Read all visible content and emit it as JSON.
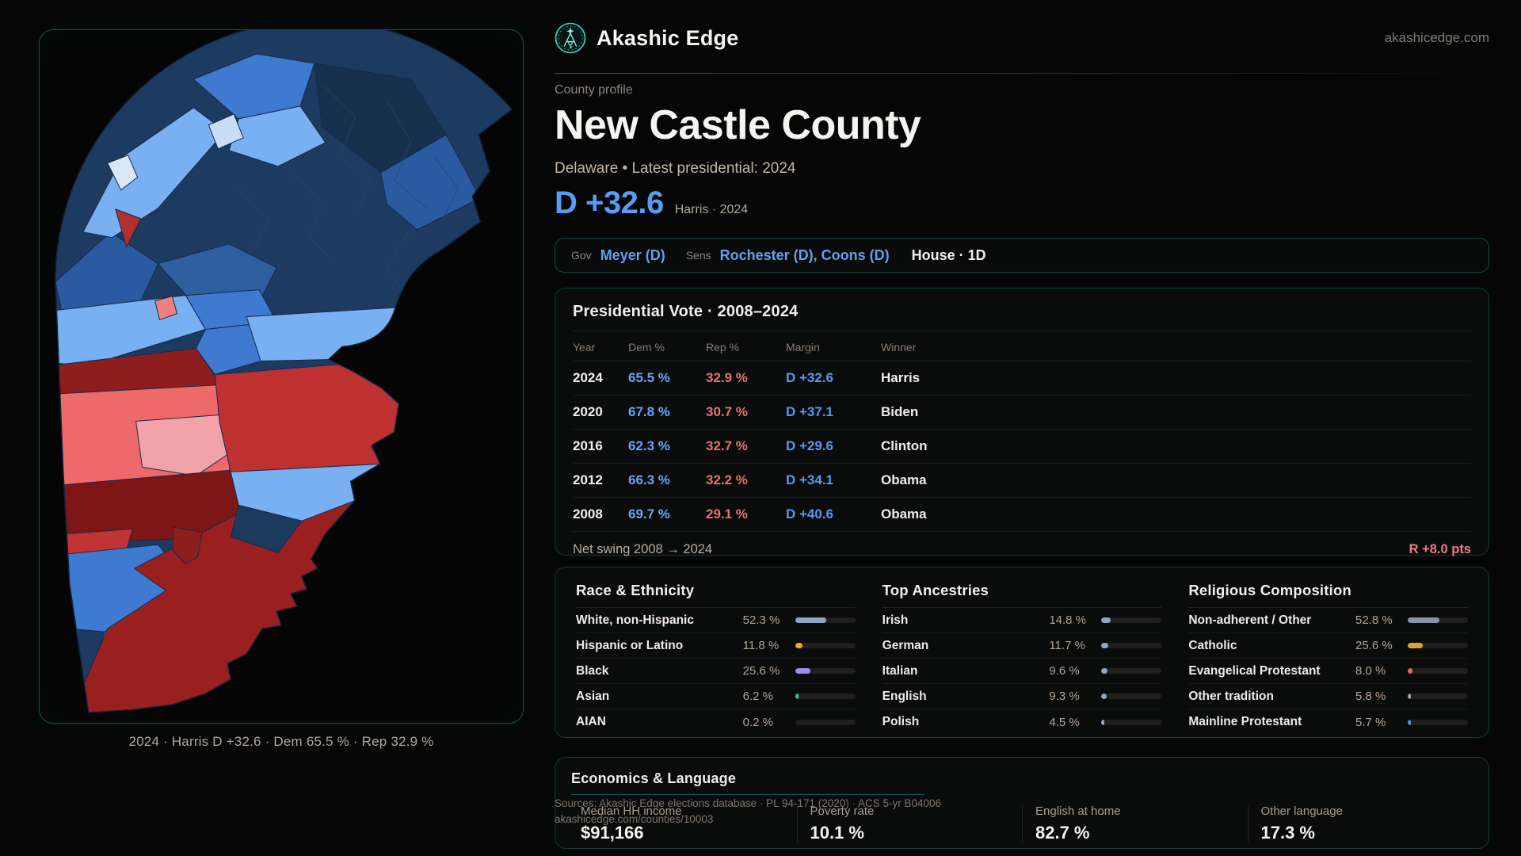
{
  "brand": {
    "name": "Akashic Edge",
    "domain": "akashicedge.com",
    "accent": "#2dd4bf",
    "logo_icon": "akashic-emblem-icon"
  },
  "page": {
    "kicker": "County profile",
    "title": "New Castle County",
    "subtitle": "Delaware • Latest presidential: 2024",
    "margin_headline": "D +32.6",
    "margin_context": "Harris · 2024",
    "margin_color": "#579df3"
  },
  "officials": {
    "gov_label": "Gov",
    "gov_value": "Meyer (D)",
    "sens_label": "Sens",
    "sens_value": "Rochester (D), Coons (D)",
    "house_value": "House · 1D"
  },
  "map": {
    "caption": "2024 · Harris D +32.6 · Dem 65.5 % · Rep 32.9 %",
    "dem_color": "#3f7ad0",
    "rep_color": "#bf3131"
  },
  "presidential": {
    "title": "Presidential Vote · 2008–2024",
    "columns": [
      "Year",
      "Dem %",
      "Rep %",
      "Margin",
      "Winner"
    ],
    "rows": [
      {
        "year": "2024",
        "dem": "65.5 %",
        "rep": "32.9 %",
        "margin": "D +32.6",
        "winner": "Harris"
      },
      {
        "year": "2020",
        "dem": "67.8 %",
        "rep": "30.7 %",
        "margin": "D +37.1",
        "winner": "Biden"
      },
      {
        "year": "2016",
        "dem": "62.3 %",
        "rep": "32.7 %",
        "margin": "D +29.6",
        "winner": "Clinton"
      },
      {
        "year": "2012",
        "dem": "66.3 %",
        "rep": "32.2 %",
        "margin": "D +34.1",
        "winner": "Obama"
      },
      {
        "year": "2008",
        "dem": "69.7 %",
        "rep": "29.1 %",
        "margin": "D +40.6",
        "winner": "Obama"
      }
    ],
    "net_swing_label": "Net swing 2008 → 2024",
    "net_swing_value": "R +8.0 pts",
    "net_swing_color": "#ee7d7d"
  },
  "demographics": [
    {
      "title": "Race & Ethnicity",
      "rows": [
        {
          "label": "White, non-Hispanic",
          "value": "52.3 %",
          "pct": 52.3,
          "color": "#8ea6c6"
        },
        {
          "label": "Hispanic or Latino",
          "value": "11.8 %",
          "pct": 11.8,
          "color": "#e8a53c"
        },
        {
          "label": "Black",
          "value": "25.6 %",
          "pct": 25.6,
          "color": "#9b8cec"
        },
        {
          "label": "Asian",
          "value": "6.2 %",
          "pct": 6.2,
          "color": "#37c78f"
        },
        {
          "label": "AIAN",
          "value": "0.2 %",
          "pct": 0.2,
          "color": "#8ea6c6"
        }
      ]
    },
    {
      "title": "Top Ancestries",
      "rows": [
        {
          "label": "Irish",
          "value": "14.8 %",
          "pct": 14.8,
          "color": "#8ea6c6"
        },
        {
          "label": "German",
          "value": "11.7 %",
          "pct": 11.7,
          "color": "#8ea6c6"
        },
        {
          "label": "Italian",
          "value": "9.6 %",
          "pct": 9.6,
          "color": "#8ea6c6"
        },
        {
          "label": "English",
          "value": "9.3 %",
          "pct": 9.3,
          "color": "#8ea6c6"
        },
        {
          "label": "Polish",
          "value": "4.5 %",
          "pct": 4.5,
          "color": "#8ea6c6"
        }
      ]
    },
    {
      "title": "Religious Composition",
      "rows": [
        {
          "label": "Non-adherent / Other",
          "value": "52.8 %",
          "pct": 52.8,
          "color": "#8795ab"
        },
        {
          "label": "Catholic",
          "value": "25.6 %",
          "pct": 25.6,
          "color": "#d9a626"
        },
        {
          "label": "Evangelical Protestant",
          "value": "8.0 %",
          "pct": 8.0,
          "color": "#e26a6a"
        },
        {
          "label": "Other tradition",
          "value": "5.8 %",
          "pct": 5.8,
          "color": "#9aa2ac"
        },
        {
          "label": "Mainline Protestant",
          "value": "5.7 %",
          "pct": 5.7,
          "color": "#4a8fe8"
        }
      ]
    }
  ],
  "economics": {
    "title": "Economics & Language",
    "stats": [
      {
        "label": "Median HH income",
        "value": "$91,166"
      },
      {
        "label": "Poverty rate",
        "value": "10.1 %"
      },
      {
        "label": "English at home",
        "value": "82.7 %"
      },
      {
        "label": "Other language",
        "value": "17.3 %"
      }
    ]
  },
  "footer": {
    "line1": "Sources: Akashic Edge elections database · PL 94-171 (2020) · ACS 5-yr B04006",
    "line2": "akashicedge.com/counties/10003"
  }
}
